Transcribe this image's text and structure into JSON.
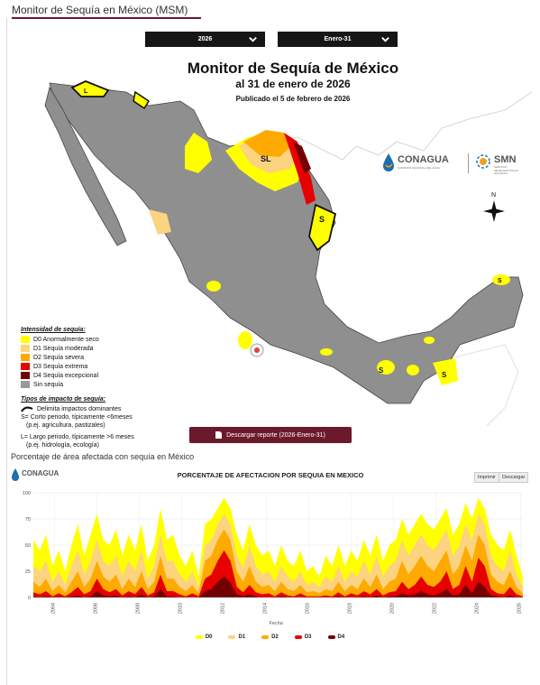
{
  "header": {
    "title": "Monitor de Sequía en México (MSM)"
  },
  "controls": {
    "year": "2026",
    "date": "Enero-31"
  },
  "map": {
    "title": "Monitor de Sequía de México",
    "subtitle": "al 31 de enero de 2026",
    "published": "Publicado el 5 de febrero de 2026",
    "north_label": "N",
    "region_labels": {
      "sl": "SL",
      "s": "S",
      "l": "L"
    },
    "legend": {
      "intensity_title": "Intensidad de sequía:",
      "items": [
        {
          "label": "D0 Anormalmente seco",
          "color": "#ffff00"
        },
        {
          "label": "D1 Sequía moderada",
          "color": "#fcd37f"
        },
        {
          "label": "D2 Sequía severa",
          "color": "#ffaa00"
        },
        {
          "label": "D3 Sequía extrema",
          "color": "#e60000"
        },
        {
          "label": "D4 Sequía excepcional",
          "color": "#730000"
        },
        {
          "label": "Sin sequía",
          "color": "#999999"
        }
      ],
      "impact_title": "Tipos de impacto de sequía:",
      "impact_line": "Delimita impactos dominantes",
      "impact_s": "S= Corto periodo, típicamente <6meses",
      "impact_s2": "(p.ej. agricultura, pastizales)",
      "impact_l": "L= Largo periodo, típicamente >6 meses",
      "impact_l2": "(p.ej. hidrología, ecología)"
    },
    "logos": {
      "conagua": "CONAGUA",
      "conagua_sub": "COMISIÓN NACIONAL DEL AGUA",
      "smn": "SMN",
      "smn_sub": "SERVICIO METEOROLÓGICO NACIONAL"
    }
  },
  "report_button": "Descargar reporte (2026-Enero-31)",
  "chart_section": {
    "title": "Porcentaje de área afectada con sequía en México"
  },
  "chart_data": {
    "type": "area",
    "title": "PORCENTAJE DE AFECTACION POR SEQUIA EN MEXICO",
    "logo_text": "CONAGUA",
    "xlabel": "Fecha",
    "ylabel": "",
    "ylim": [
      0,
      100
    ],
    "yticks": [
      0,
      25,
      50,
      75,
      100
    ],
    "xlim": [
      2003,
      2026.1
    ],
    "xticks": [
      "2004",
      "2006",
      "2008",
      "2010",
      "2012",
      "2014",
      "2016",
      "2018",
      "2020",
      "2022",
      "2024",
      "2026"
    ],
    "buttons": [
      "Imprimir",
      "Descargar"
    ],
    "x": [
      2003.0,
      2003.3,
      2003.6,
      2003.9,
      2004.2,
      2004.5,
      2004.8,
      2005.1,
      2005.4,
      2005.7,
      2006.0,
      2006.3,
      2006.6,
      2006.9,
      2007.2,
      2007.5,
      2007.8,
      2008.1,
      2008.4,
      2008.7,
      2009.0,
      2009.3,
      2009.6,
      2009.9,
      2010.2,
      2010.5,
      2010.8,
      2011.1,
      2011.4,
      2011.7,
      2012.0,
      2012.3,
      2012.6,
      2012.9,
      2013.2,
      2013.5,
      2013.8,
      2014.1,
      2014.4,
      2014.7,
      2015.0,
      2015.3,
      2015.6,
      2015.9,
      2016.2,
      2016.5,
      2016.8,
      2017.1,
      2017.4,
      2017.7,
      2018.0,
      2018.3,
      2018.6,
      2018.9,
      2019.2,
      2019.5,
      2019.8,
      2020.1,
      2020.4,
      2020.7,
      2021.0,
      2021.3,
      2021.6,
      2021.9,
      2022.2,
      2022.5,
      2022.8,
      2023.1,
      2023.4,
      2023.7,
      2024.0,
      2024.3,
      2024.6,
      2024.9,
      2025.2,
      2025.5,
      2025.8,
      2026.1
    ],
    "series": [
      {
        "name": "D0",
        "color": "#ffff00",
        "values": [
          55,
          45,
          60,
          30,
          45,
          25,
          50,
          70,
          40,
          60,
          80,
          55,
          50,
          65,
          40,
          60,
          45,
          70,
          35,
          50,
          85,
          55,
          60,
          40,
          30,
          45,
          20,
          70,
          75,
          85,
          95,
          85,
          60,
          45,
          70,
          50,
          40,
          45,
          30,
          50,
          35,
          30,
          45,
          25,
          30,
          20,
          40,
          30,
          50,
          30,
          45,
          35,
          55,
          40,
          60,
          35,
          50,
          55,
          75,
          60,
          70,
          80,
          70,
          65,
          75,
          85,
          60,
          70,
          90,
          75,
          95,
          85,
          60,
          50,
          45,
          65,
          40,
          20
        ]
      },
      {
        "name": "D1",
        "color": "#fcd37f",
        "values": [
          30,
          25,
          35,
          15,
          25,
          12,
          30,
          45,
          22,
          35,
          55,
          35,
          30,
          40,
          20,
          35,
          25,
          45,
          18,
          30,
          60,
          35,
          35,
          22,
          15,
          25,
          10,
          50,
          55,
          70,
          80,
          70,
          40,
          28,
          50,
          30,
          22,
          25,
          15,
          30,
          20,
          15,
          25,
          12,
          15,
          10,
          20,
          15,
          30,
          15,
          25,
          20,
          35,
          22,
          40,
          20,
          30,
          35,
          55,
          40,
          50,
          60,
          50,
          45,
          55,
          65,
          40,
          50,
          70,
          55,
          80,
          70,
          40,
          30,
          25,
          45,
          22,
          10
        ]
      },
      {
        "name": "D2",
        "color": "#ffaa00",
        "values": [
          15,
          10,
          18,
          6,
          12,
          5,
          15,
          25,
          10,
          18,
          35,
          20,
          15,
          22,
          8,
          18,
          10,
          25,
          8,
          15,
          40,
          18,
          18,
          10,
          6,
          12,
          4,
          35,
          40,
          55,
          65,
          55,
          25,
          15,
          30,
          15,
          10,
          12,
          6,
          15,
          8,
          6,
          12,
          5,
          6,
          4,
          8,
          6,
          15,
          6,
          12,
          8,
          18,
          10,
          22,
          8,
          15,
          18,
          35,
          22,
          30,
          40,
          30,
          25,
          35,
          45,
          22,
          30,
          50,
          35,
          60,
          50,
          22,
          15,
          12,
          25,
          10,
          4
        ]
      },
      {
        "name": "D3",
        "color": "#e60000",
        "values": [
          5,
          3,
          6,
          1,
          4,
          1,
          5,
          10,
          3,
          6,
          18,
          8,
          5,
          8,
          2,
          6,
          3,
          10,
          2,
          5,
          22,
          6,
          6,
          3,
          1,
          4,
          1,
          18,
          22,
          35,
          45,
          35,
          10,
          5,
          12,
          5,
          3,
          4,
          1,
          5,
          2,
          1,
          4,
          1,
          1,
          1,
          2,
          1,
          5,
          1,
          4,
          2,
          6,
          3,
          8,
          2,
          5,
          6,
          15,
          8,
          12,
          20,
          12,
          10,
          15,
          25,
          8,
          12,
          30,
          15,
          38,
          30,
          8,
          4,
          3,
          10,
          3,
          1
        ]
      },
      {
        "name": "D4",
        "color": "#730000",
        "values": [
          1,
          0,
          1,
          0,
          0,
          0,
          1,
          2,
          0,
          1,
          6,
          2,
          1,
          2,
          0,
          1,
          0,
          3,
          0,
          1,
          8,
          1,
          1,
          0,
          0,
          0,
          0,
          6,
          8,
          15,
          20,
          14,
          3,
          1,
          3,
          1,
          0,
          0,
          0,
          1,
          0,
          0,
          0,
          0,
          0,
          0,
          0,
          0,
          1,
          0,
          0,
          0,
          1,
          0,
          2,
          0,
          1,
          1,
          4,
          2,
          3,
          6,
          3,
          2,
          4,
          8,
          2,
          3,
          12,
          4,
          15,
          10,
          2,
          1,
          0,
          2,
          0,
          0
        ]
      }
    ]
  }
}
